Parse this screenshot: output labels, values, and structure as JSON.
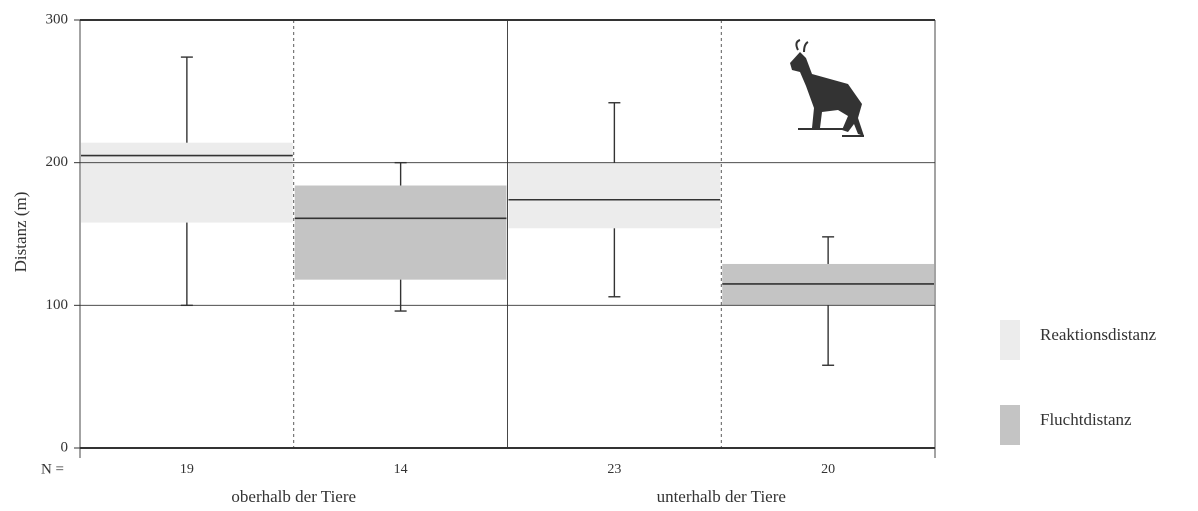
{
  "chart_data": {
    "type": "box",
    "y_label": "Distanz (m)",
    "n_label": "N =",
    "categories": [
      "19",
      "14",
      "23",
      "20"
    ],
    "groups": [
      "oberhalb der Tiere",
      "unterhalb der Tiere"
    ],
    "ylim": [
      0,
      300
    ],
    "yticks": [
      0,
      100,
      200,
      300
    ],
    "grid": true,
    "legend": "right",
    "series": [
      {
        "name": "Reaktionsdistanz",
        "color": "#ececec",
        "mean": [
          205,
          null,
          174,
          null
        ],
        "box_low": [
          158,
          null,
          154,
          null
        ],
        "box_high": [
          214,
          null,
          200,
          null
        ],
        "whisker_low": [
          100,
          null,
          106,
          null
        ],
        "whisker_high": [
          274,
          null,
          242,
          null
        ]
      },
      {
        "name": "Fluchtdistanz",
        "color": "#c4c4c4",
        "mean": [
          null,
          161,
          null,
          115
        ],
        "box_low": [
          null,
          118,
          null,
          100
        ],
        "box_high": [
          null,
          184,
          null,
          129
        ],
        "whisker_low": [
          null,
          96,
          null,
          58
        ],
        "whisker_high": [
          null,
          200,
          null,
          148
        ]
      }
    ]
  }
}
